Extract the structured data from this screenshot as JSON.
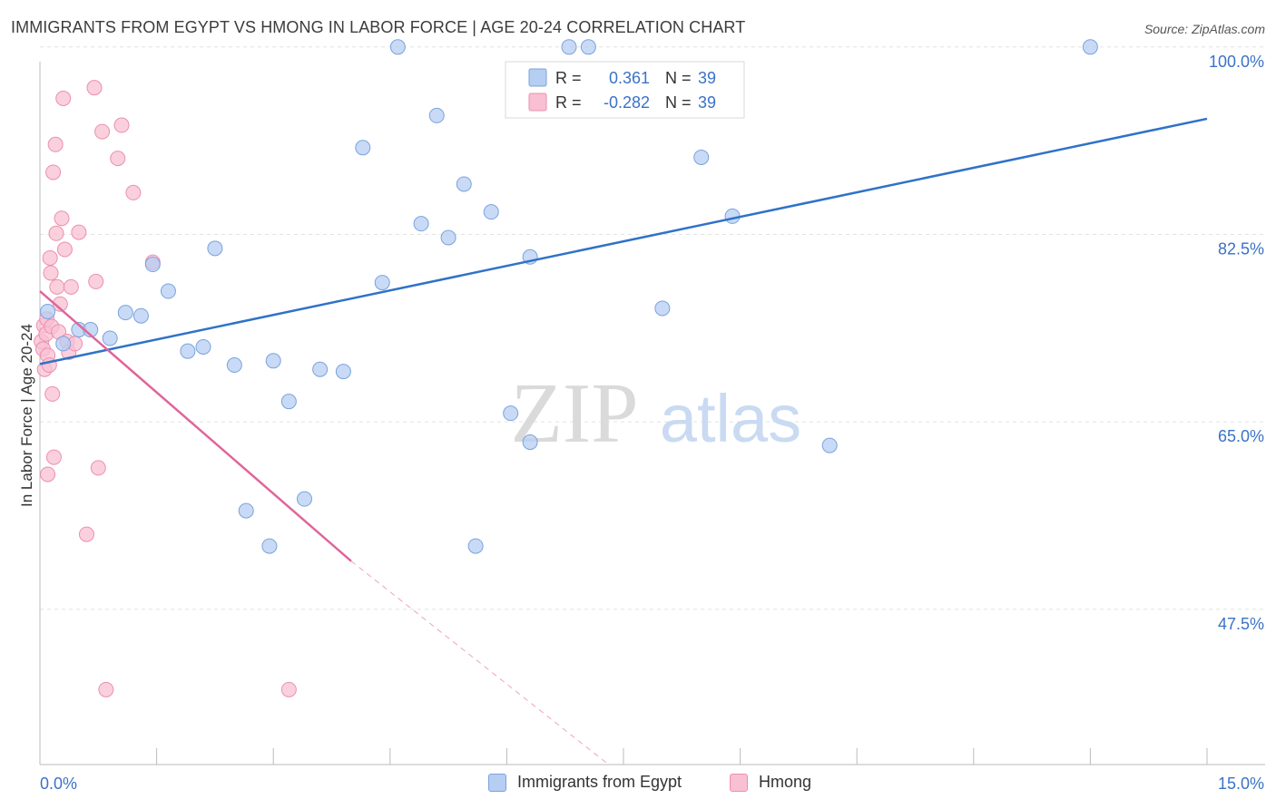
{
  "title": "IMMIGRANTS FROM EGYPT VS HMONG IN LABOR FORCE | AGE 20-24 CORRELATION CHART",
  "source": "Source: ZipAtlas.com",
  "watermark": {
    "zip": "ZIP",
    "atlas": "atlas"
  },
  "colors": {
    "egypt_fill": "#b6cef2",
    "egypt_stroke": "#7aa3de",
    "egypt_line": "#2f72c8",
    "hmong_fill": "#f8c0d2",
    "hmong_stroke": "#ec8fb0",
    "hmong_line": "#e0659a",
    "axis_label": "#3a72c8",
    "grid": "#e2e2e2"
  },
  "legend_top": [
    {
      "r_label": "R =",
      "r_value": "0.361",
      "n_label": "N =",
      "n_value": "39"
    },
    {
      "r_label": "R =",
      "r_value": "-0.282",
      "n_label": "N =",
      "n_value": "39"
    }
  ],
  "legend_bottom": [
    {
      "label": "Immigrants from Egypt"
    },
    {
      "label": "Hmong"
    }
  ],
  "chart_data": {
    "type": "scatter",
    "title": "IMMIGRANTS FROM EGYPT VS HMONG IN LABOR FORCE | AGE 20-24 CORRELATION CHART",
    "xlabel": "",
    "ylabel": "In Labor Force | Age 20-24",
    "xlim": [
      0,
      15
    ],
    "ylim": [
      33,
      101
    ],
    "x_tick_labels": [
      "0.0%",
      "15.0%"
    ],
    "y_ticks": [
      47.5,
      65.0,
      82.5,
      100.0
    ],
    "y_tick_labels": [
      "47.5%",
      "65.0%",
      "82.5%",
      "100.0%"
    ],
    "grid": true,
    "series": [
      {
        "name": "Immigrants from Egypt",
        "r": 0.361,
        "n": 39,
        "trend": {
          "x0": 0.0,
          "y0": 70.4,
          "x1": 15.0,
          "y1": 93.3
        },
        "points": [
          {
            "x": 0.1,
            "y": 75.3
          },
          {
            "x": 0.3,
            "y": 72.3
          },
          {
            "x": 0.5,
            "y": 73.6
          },
          {
            "x": 0.65,
            "y": 73.6
          },
          {
            "x": 0.9,
            "y": 72.8
          },
          {
            "x": 1.1,
            "y": 75.2
          },
          {
            "x": 1.3,
            "y": 74.9
          },
          {
            "x": 1.45,
            "y": 79.7
          },
          {
            "x": 1.65,
            "y": 77.2
          },
          {
            "x": 1.9,
            "y": 71.6
          },
          {
            "x": 2.1,
            "y": 72.0
          },
          {
            "x": 2.25,
            "y": 81.2
          },
          {
            "x": 2.5,
            "y": 70.3
          },
          {
            "x": 2.65,
            "y": 56.7
          },
          {
            "x": 2.95,
            "y": 53.4
          },
          {
            "x": 3.0,
            "y": 70.7
          },
          {
            "x": 3.2,
            "y": 66.9
          },
          {
            "x": 3.4,
            "y": 57.8
          },
          {
            "x": 3.6,
            "y": 69.9
          },
          {
            "x": 3.9,
            "y": 69.7
          },
          {
            "x": 4.15,
            "y": 90.6
          },
          {
            "x": 4.4,
            "y": 78.0
          },
          {
            "x": 4.6,
            "y": 100.0
          },
          {
            "x": 4.9,
            "y": 83.5
          },
          {
            "x": 5.1,
            "y": 93.6
          },
          {
            "x": 5.25,
            "y": 82.2
          },
          {
            "x": 5.45,
            "y": 87.2
          },
          {
            "x": 5.6,
            "y": 53.4
          },
          {
            "x": 5.8,
            "y": 84.6
          },
          {
            "x": 6.05,
            "y": 65.8
          },
          {
            "x": 6.3,
            "y": 80.4
          },
          {
            "x": 6.3,
            "y": 63.1
          },
          {
            "x": 6.8,
            "y": 100.0
          },
          {
            "x": 7.05,
            "y": 100.0
          },
          {
            "x": 8.0,
            "y": 75.6
          },
          {
            "x": 8.5,
            "y": 89.7
          },
          {
            "x": 8.9,
            "y": 84.2
          },
          {
            "x": 10.15,
            "y": 62.8
          },
          {
            "x": 13.5,
            "y": 100.0
          }
        ]
      },
      {
        "name": "Hmong",
        "r": -0.282,
        "n": 39,
        "trend": {
          "x0": 0.0,
          "y0": 77.2,
          "x1": 4.0,
          "y1": 52.0
        },
        "trend_dashed": {
          "x0": 4.0,
          "y0": 52.0,
          "x1": 7.5,
          "y1": 31.9
        },
        "points": [
          {
            "x": 0.02,
            "y": 72.5
          },
          {
            "x": 0.04,
            "y": 71.8
          },
          {
            "x": 0.05,
            "y": 74.0
          },
          {
            "x": 0.06,
            "y": 69.9
          },
          {
            "x": 0.08,
            "y": 73.2
          },
          {
            "x": 0.09,
            "y": 74.6
          },
          {
            "x": 0.1,
            "y": 71.2
          },
          {
            "x": 0.1,
            "y": 60.1
          },
          {
            "x": 0.12,
            "y": 70.3
          },
          {
            "x": 0.13,
            "y": 80.3
          },
          {
            "x": 0.14,
            "y": 78.9
          },
          {
            "x": 0.15,
            "y": 73.9
          },
          {
            "x": 0.16,
            "y": 67.6
          },
          {
            "x": 0.17,
            "y": 88.3
          },
          {
            "x": 0.18,
            "y": 61.7
          },
          {
            "x": 0.2,
            "y": 90.9
          },
          {
            "x": 0.21,
            "y": 82.6
          },
          {
            "x": 0.22,
            "y": 77.6
          },
          {
            "x": 0.24,
            "y": 73.4
          },
          {
            "x": 0.26,
            "y": 76.0
          },
          {
            "x": 0.28,
            "y": 84.0
          },
          {
            "x": 0.3,
            "y": 95.2
          },
          {
            "x": 0.32,
            "y": 81.1
          },
          {
            "x": 0.35,
            "y": 72.5
          },
          {
            "x": 0.37,
            "y": 71.5
          },
          {
            "x": 0.4,
            "y": 77.6
          },
          {
            "x": 0.45,
            "y": 72.3
          },
          {
            "x": 0.5,
            "y": 82.7
          },
          {
            "x": 0.6,
            "y": 54.5
          },
          {
            "x": 0.7,
            "y": 96.2
          },
          {
            "x": 0.72,
            "y": 78.1
          },
          {
            "x": 0.75,
            "y": 60.7
          },
          {
            "x": 0.8,
            "y": 92.1
          },
          {
            "x": 0.85,
            "y": 40.0
          },
          {
            "x": 1.0,
            "y": 89.6
          },
          {
            "x": 1.05,
            "y": 92.7
          },
          {
            "x": 1.2,
            "y": 86.4
          },
          {
            "x": 1.45,
            "y": 79.9
          },
          {
            "x": 3.2,
            "y": 40.0
          }
        ]
      }
    ]
  }
}
